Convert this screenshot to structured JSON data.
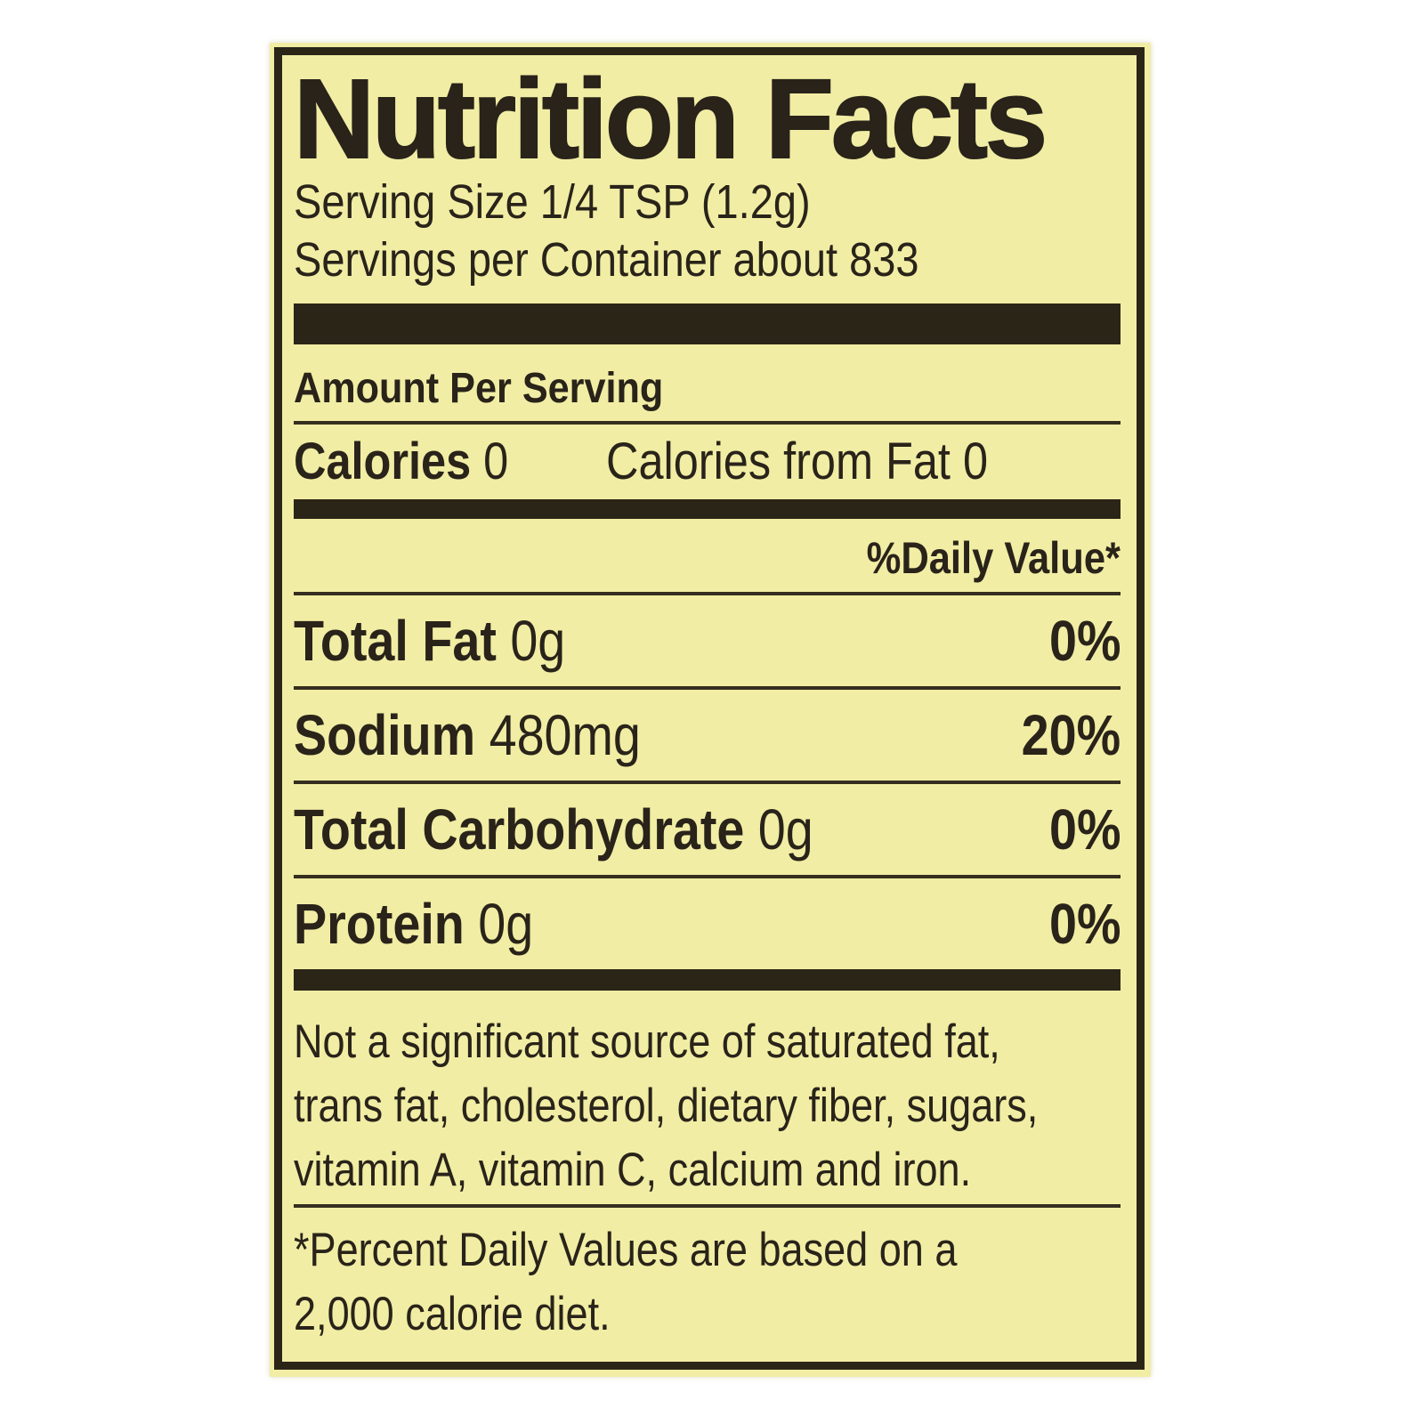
{
  "label": {
    "title": "Nutrition Facts",
    "serving_size": "Serving Size 1/4 TSP (1.2g)",
    "servings_per_container": "Servings per Container about 833",
    "amount_per_serving": "Amount Per Serving",
    "calories": {
      "label": "Calories",
      "value": "0",
      "from_fat_label": "Calories from Fat",
      "from_fat_value": "0"
    },
    "daily_value_header": "%Daily Value*",
    "nutrients": [
      {
        "name": "Total Fat",
        "amount": "0g",
        "dv": "0%"
      },
      {
        "name": "Sodium",
        "amount": "480mg",
        "dv": "20%"
      },
      {
        "name": "Total Carbohydrate",
        "amount": "0g",
        "dv": "0%"
      },
      {
        "name": "Protein",
        "amount": "0g",
        "dv": "0%"
      }
    ],
    "not_significant_note_lines": [
      "Not a significant source of saturated fat,",
      "trans fat, cholesterol, dietary fiber, sugars,",
      "vitamin A, vitamin C, calcium and iron."
    ],
    "percent_dv_note_lines": [
      "*Percent Daily Values are based on a",
      "2,000 calorie diet."
    ],
    "colors": {
      "background": "#f1eda4",
      "ink": "#2b2518"
    }
  }
}
